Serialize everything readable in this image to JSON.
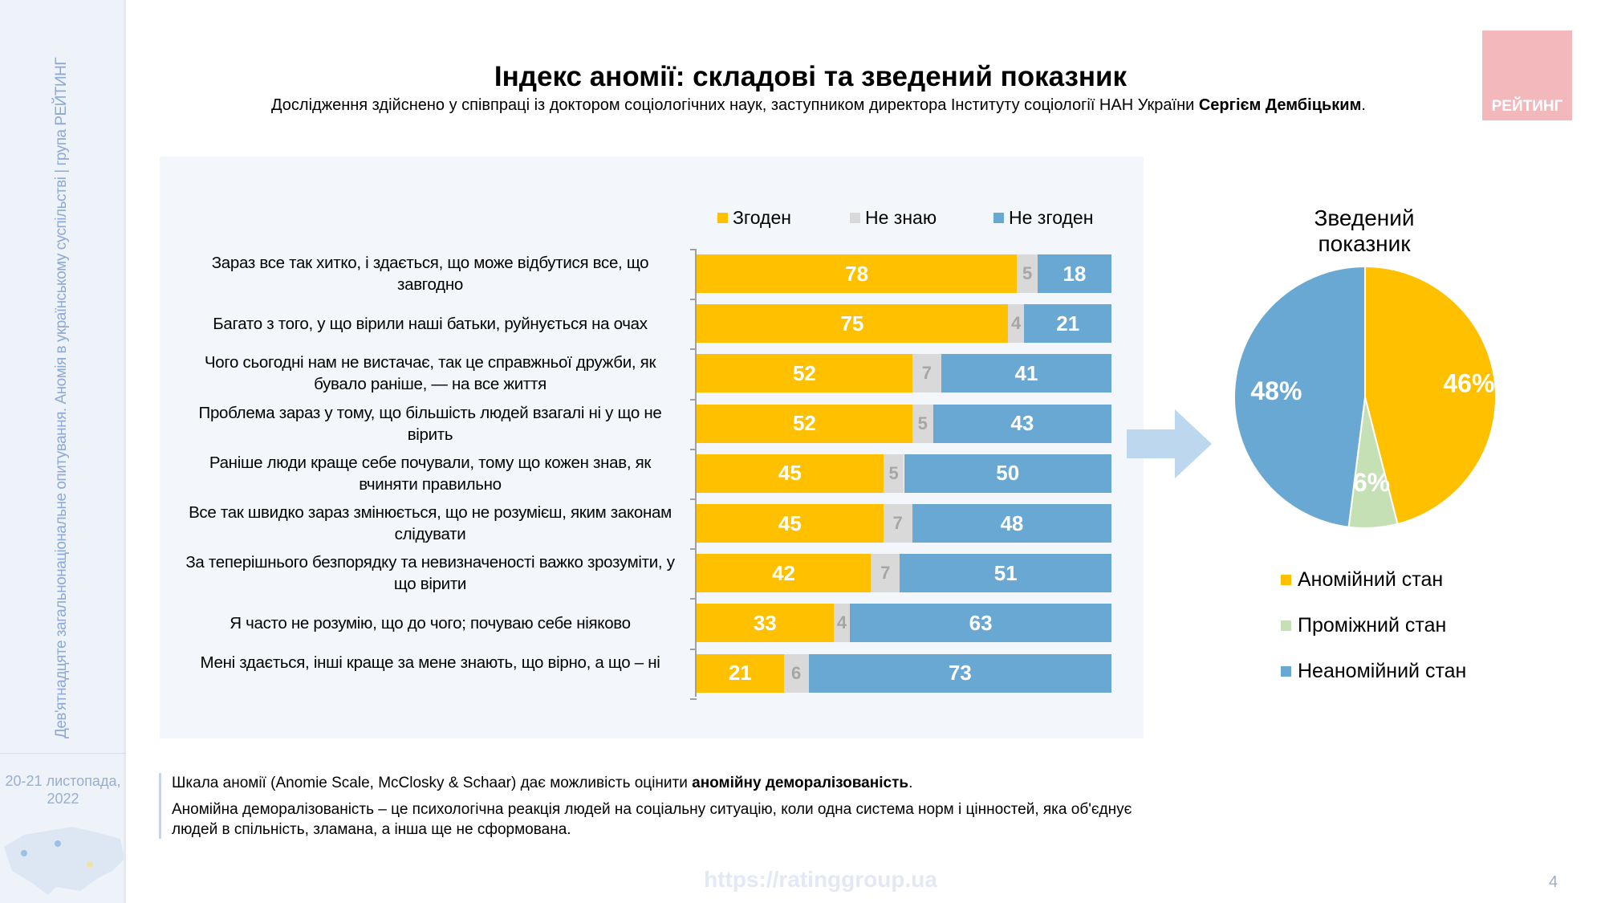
{
  "sidebar": {
    "vertical_text": "Дев'ятнадцяте загальнонаціональне опитування. Аномія в українському суспільстві | група РЕЙТИНГ",
    "date": "20-21 листопада, 2022"
  },
  "header": {
    "title": "Індекс аномії: складові та зведений показник",
    "subtitle_prefix": "Дослідження здійснено у співпраці із доктором соціологічних наук, заступником директора Інституту соціології НАН України ",
    "subtitle_bold": "Сергієм Дембіцьким",
    "subtitle_suffix": "."
  },
  "logo": {
    "text": "РЕЙТИНГ"
  },
  "colors": {
    "agree": "#FFC000",
    "dont_know": "#D9D9D9",
    "disagree": "#6AA8D4",
    "intermediate": "#C5E0B4"
  },
  "chart_data": [
    {
      "type": "bar",
      "orientation": "horizontal",
      "stacked": true,
      "legend_position": "top",
      "categories": [
        "Зараз все так хитко, і здається, що може відбутися все, що завгодно",
        "Багато з того, у що вірили наші батьки, руйнується на очах",
        "Чого сьогодні нам не вистачає, так це справжньої дружби, як бувало раніше, — на все життя",
        "Проблема зараз у тому, що більшість людей взагалі ні у що не вірить",
        "Раніше люди краще себе почували, тому що кожен знав, як вчиняти правильно",
        "Все так швидко зараз змінюється, що не розумієш, яким законам слідувати",
        "За теперішнього безпорядку та невизначеності важко зрозуміти, у що вірити",
        "Я часто не розумію, що до чого; почуваю себе ніяково",
        "Мені здається, інші краще за мене знають, що вірно, а що – ні"
      ],
      "series": [
        {
          "name": "Згоден",
          "values": [
            78,
            75,
            52,
            52,
            45,
            45,
            42,
            33,
            21
          ]
        },
        {
          "name": "Не знаю",
          "values": [
            5,
            4,
            7,
            5,
            5,
            7,
            7,
            4,
            6
          ]
        },
        {
          "name": "Не згоден",
          "values": [
            18,
            21,
            41,
            43,
            50,
            48,
            51,
            63,
            73
          ]
        }
      ]
    },
    {
      "type": "pie",
      "title": "Зведений показник",
      "labels": [
        "Аномійний стан",
        "Проміжний стан",
        "Неаномійний стан"
      ],
      "values": [
        46,
        6,
        48
      ],
      "value_labels": [
        "46%",
        "6%",
        "48%"
      ],
      "legend_position": "bottom"
    }
  ],
  "footer": {
    "line1_prefix": "Шкала аномії (Anomie Scale, McClosky & Schaar) дає можливість оцінити ",
    "line1_bold": "аномійну деморалізованість",
    "line1_suffix": ".",
    "line2": "Аномійна деморалізованість – це психологічна реакція людей на соціальну ситуацію, коли одна система норм і цінностей, яка об'єднує людей в спільність, зламана, а інша ще не сформована.",
    "url": "https://ratinggroup.ua",
    "page": "4"
  }
}
